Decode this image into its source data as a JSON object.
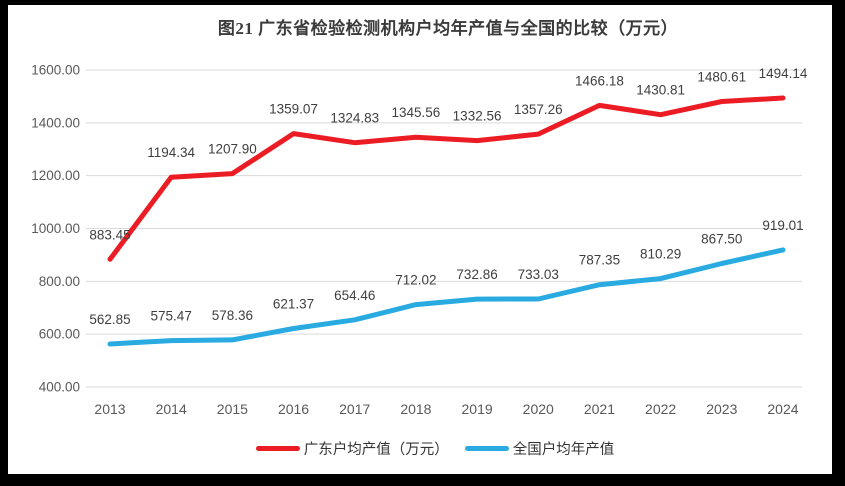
{
  "chart": {
    "title": "图21  广东省检验检测机构户均年产值与全国的比较（万元）"
  },
  "chart_data": {
    "type": "line",
    "title": "图21  广东省检验检测机构户均年产值与全国的比较（万元）",
    "categories": [
      "2013",
      "2014",
      "2015",
      "2016",
      "2017",
      "2018",
      "2019",
      "2020",
      "2021",
      "2022",
      "2023",
      "2024"
    ],
    "series": [
      {
        "name": "广东户均产值（万元）",
        "color": "#ec1c24",
        "values": [
          883.45,
          1194.34,
          1207.9,
          1359.07,
          1324.83,
          1345.56,
          1332.56,
          1357.26,
          1466.18,
          1430.81,
          1480.61,
          1494.14
        ]
      },
      {
        "name": "全国户均年产值",
        "color": "#29abe2",
        "values": [
          562.85,
          575.47,
          578.36,
          621.37,
          654.46,
          712.02,
          732.86,
          733.03,
          787.35,
          810.29,
          867.5,
          919.01
        ]
      }
    ],
    "ylim": [
      400,
      1600
    ],
    "y_tick_step": 200,
    "y_tick_format": "2-decimals",
    "data_labels": true,
    "grid": true,
    "legend_position": "bottom",
    "colors": {
      "gridline": "#d9d9d9",
      "tick_text": "#595959",
      "data_label_text": "#3f3f3f",
      "frame": "#000000",
      "background": "#ffffff"
    }
  }
}
